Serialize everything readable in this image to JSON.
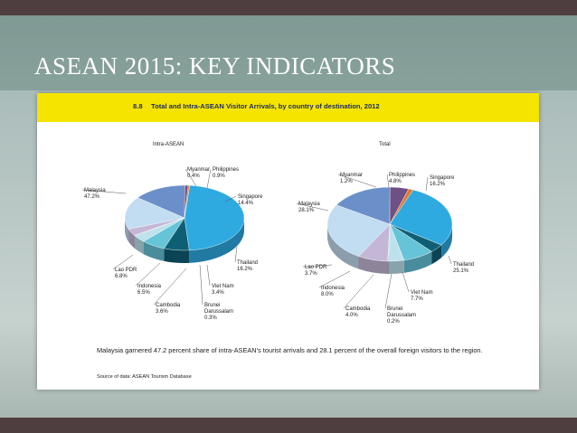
{
  "slide": {
    "title": "ASEAN 2015: KEY INDICATORS"
  },
  "figure": {
    "number": "8.8",
    "title": "Total and Intra-ASEAN Visitor Arrivals, by country of destination, 2012",
    "caption": "Malaysia garnered 47.2 percent share of intra-ASEAN's tourist arrivals and 28.1 percent of the overall foreign visitors to the region.",
    "source": "Source of data: ASEAN Tourism Database"
  },
  "colors": {
    "Malaysia": "#2eaae1",
    "Lao PDR": "#0f5f74",
    "Indonesia": "#66c4d8",
    "Cambodia": "#bde2ec",
    "Brunei Darussalam": "#9a8bb5",
    "Viet Nam": "#c4b7d6",
    "Thailand": "#c2dcf2",
    "Singapore": "#6b8fc9",
    "Philippines": "#6e4f86",
    "Myanmar": "#e07a2b"
  },
  "chart_data": [
    {
      "type": "pie",
      "title": "Intra-ASEAN",
      "labels": [
        "Malaysia",
        "Lao PDR",
        "Indonesia",
        "Cambodia",
        "Brunei",
        "Viet Nam",
        "Thailand",
        "Singapore",
        "Philippines",
        "Myanmar"
      ],
      "sublabels": [
        "",
        "",
        "",
        "",
        "Darussalam",
        "",
        "",
        "",
        "",
        ""
      ],
      "values": [
        47.2,
        6.8,
        6.5,
        3.6,
        0.3,
        3.4,
        16.2,
        14.4,
        0.9,
        0.4
      ],
      "value_labels": [
        "47.2%",
        "6.8%",
        "6.5%",
        "3.6%",
        "0.3%",
        "3.4%",
        "16.2%",
        "14.4%",
        "0.9%",
        "0.4%"
      ]
    },
    {
      "type": "pie",
      "title": "Total",
      "labels": [
        "Malaysia",
        "Lao PDR",
        "Indonesia",
        "Cambodia",
        "Brunei",
        "Viet Nam",
        "Thailand",
        "Singapore",
        "Philippines",
        "Myanmar"
      ],
      "sublabels": [
        "",
        "",
        "",
        "",
        "Darussalam",
        "",
        "",
        "",
        "",
        ""
      ],
      "values": [
        28.1,
        3.7,
        8.0,
        4.0,
        0.2,
        7.7,
        25.1,
        16.2,
        4.8,
        1.2
      ],
      "value_labels": [
        "28.1%",
        "3.7%",
        "8.0%",
        "4.0%",
        "0.2%",
        "7.7%",
        "25.1%",
        "16.2%",
        "4.8%",
        "1.2%"
      ]
    }
  ]
}
